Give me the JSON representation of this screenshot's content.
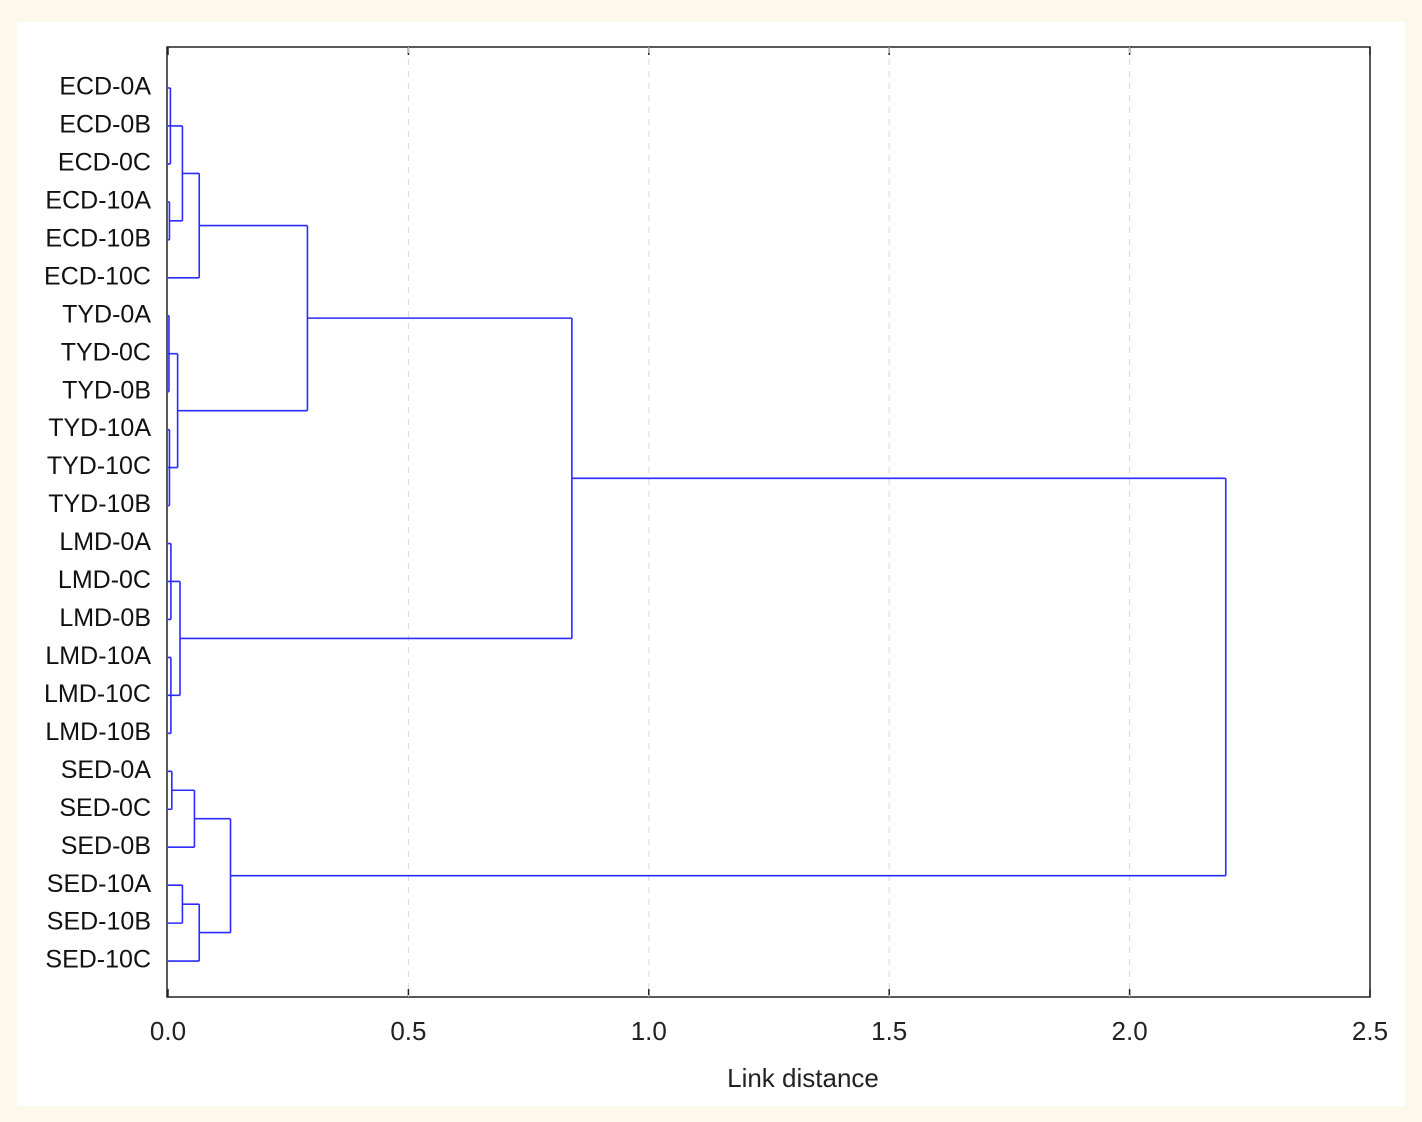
{
  "chart_data": {
    "type": "dendrogram",
    "xlabel": "Link distance",
    "xlim": [
      0,
      2.5
    ],
    "xticks": [
      {
        "value": 0,
        "label": "0.0"
      },
      0.5,
      {
        "value": 1,
        "label": "1.0"
      },
      1.5,
      {
        "value": 2,
        "label": "2.0"
      },
      2.5
    ],
    "grid": true,
    "color": "#2b2bff",
    "tree": {
      "height": 2.2,
      "children": [
        {
          "height": 0.84,
          "children": [
            {
              "height": 0.29,
              "children": [
                {
                  "height": 0.065,
                  "children": [
                    {
                      "height": 0.03,
                      "children": [
                        {
                          "height": 0.005,
                          "children": [
                            "ECD-0A",
                            "ECD-0B",
                            "ECD-0C"
                          ]
                        },
                        {
                          "height": 0.003,
                          "children": [
                            "ECD-10A",
                            "ECD-10B"
                          ]
                        }
                      ]
                    },
                    "ECD-10C"
                  ]
                },
                {
                  "height": 0.02,
                  "children": [
                    {
                      "height": 0.002,
                      "children": [
                        "TYD-0A",
                        "TYD-0C",
                        "TYD-0B"
                      ]
                    },
                    {
                      "height": 0.003,
                      "children": [
                        "TYD-10A",
                        "TYD-10C",
                        "TYD-10B"
                      ]
                    }
                  ]
                }
              ]
            },
            {
              "height": 0.025,
              "children": [
                {
                  "height": 0.006,
                  "children": [
                    "LMD-0A",
                    "LMD-0C",
                    "LMD-0B"
                  ]
                },
                {
                  "height": 0.006,
                  "children": [
                    "LMD-10A",
                    "LMD-10C",
                    "LMD-10B"
                  ]
                }
              ]
            }
          ]
        },
        {
          "height": 0.13,
          "children": [
            {
              "height": 0.055,
              "children": [
                {
                  "height": 0.008,
                  "children": [
                    "SED-0A",
                    "SED-0C"
                  ]
                },
                "SED-0B"
              ]
            },
            {
              "height": 0.065,
              "children": [
                {
                  "height": 0.03,
                  "children": [
                    "SED-10A",
                    "SED-10B"
                  ]
                },
                "SED-10C"
              ]
            }
          ]
        }
      ]
    }
  }
}
